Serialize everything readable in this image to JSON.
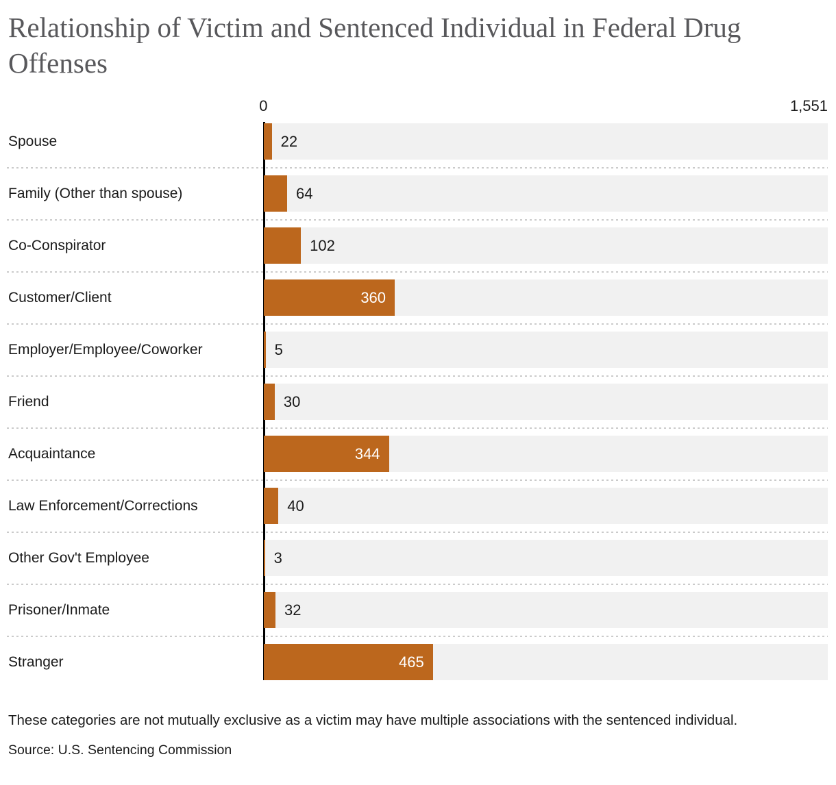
{
  "title": "Relationship of Victim and Sentenced Individual in Federal Drug Offenses",
  "chart_data": {
    "type": "bar",
    "orientation": "horizontal",
    "title": "Relationship of Victim and Sentenced Individual in Federal Drug Offenses",
    "categories": [
      "Spouse",
      "Family (Other than spouse)",
      "Co-Conspirator",
      "Customer/Client",
      "Employer/Employee/Coworker",
      "Friend",
      "Acquaintance",
      "Law Enforcement/Corrections",
      "Other Gov't Employee",
      "Prisoner/Inmate",
      "Stranger"
    ],
    "values": [
      22,
      64,
      102,
      360,
      5,
      30,
      344,
      40,
      3,
      32,
      465
    ],
    "xlim": [
      0,
      1551
    ],
    "axis_tick_labels": [
      "0",
      "1,551"
    ],
    "grid": false,
    "legend": false,
    "bar_color": "#bc671d",
    "track_color": "#f1f1f1"
  },
  "axis": {
    "min_label": "0",
    "max_label": "1,551"
  },
  "note": "These categories are not mutually exclusive as a victim may have multiple associations with the sentenced individual.",
  "source": "Source: U.S. Sentencing Commission",
  "colors": {
    "title_text": "#58585b",
    "body_text": "#1a1a1a",
    "bar": "#bc671d",
    "track": "#f1f1f1",
    "separator": "#cbcbcb",
    "axis_line": "#000000",
    "value_inside_text": "#ffffff"
  }
}
